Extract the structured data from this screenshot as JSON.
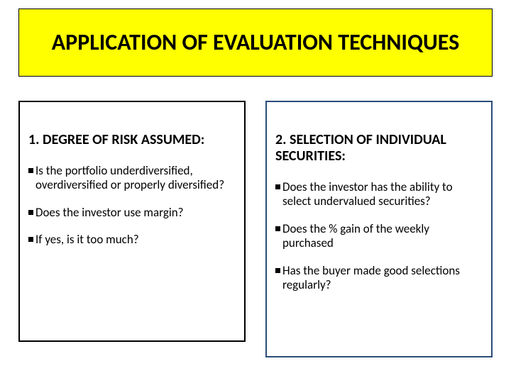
{
  "title": "APPLICATION OF EVALUATION TECHNIQUES",
  "left_box": {
    "heading": "1. DEGREE OF RISK ASSUMED:",
    "bullets": [
      "Is the portfolio underdiversified, overdiversified or properly diversified?",
      "Does the investor use margin?",
      "If yes, is it too much?"
    ],
    "border_color": "#000000"
  },
  "right_box": {
    "heading": "2. SELECTION OF INDIVIDUAL SECURITIES:",
    "bullets": [
      "Does the investor has the ability to select undervalued securities?",
      "Does the % gain of the weekly purchased",
      "Has the buyer made good selections regularly?"
    ],
    "border_color": "#2a4d7a"
  },
  "colors": {
    "title_bg": "#ffff00",
    "text": "#000000",
    "page_bg": "#ffffff"
  },
  "typography": {
    "title_fontsize": 32,
    "heading_fontsize": 20,
    "body_fontsize": 17,
    "font_family": "Calibri"
  }
}
